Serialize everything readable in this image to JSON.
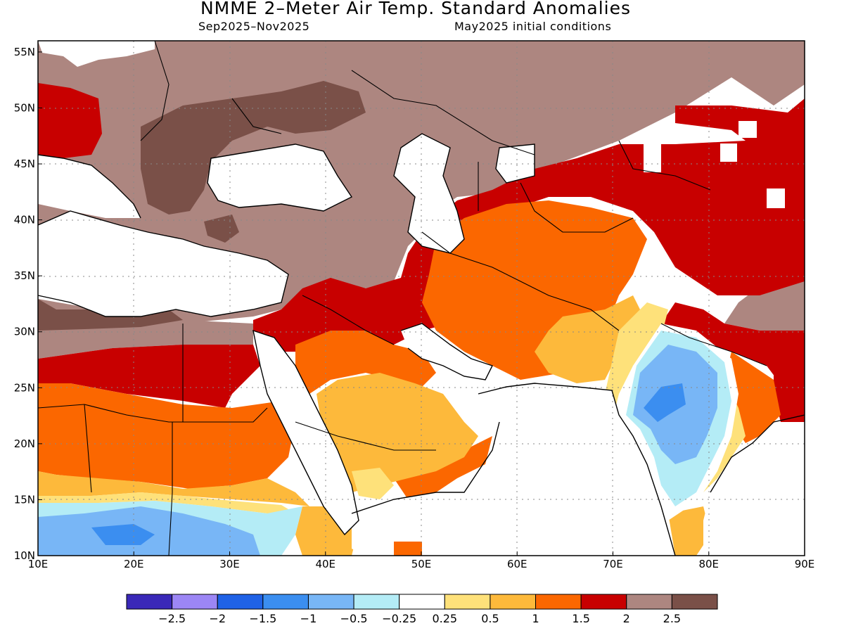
{
  "header": {
    "title": "NMME 2–Meter Air Temp. Standard Anomalies",
    "season": "Sep2025–Nov2025",
    "initial_conditions": "May2025 initial conditions"
  },
  "axes": {
    "lon_ticks": [
      "10E",
      "20E",
      "30E",
      "40E",
      "50E",
      "60E",
      "70E",
      "80E",
      "90E"
    ],
    "lat_ticks": [
      "55N",
      "50N",
      "45N",
      "40N",
      "35N",
      "30N",
      "25N",
      "20N",
      "15N",
      "10N"
    ],
    "lon_range": [
      10,
      90
    ],
    "lat_range": [
      10,
      56
    ]
  },
  "legend": {
    "colors": [
      "#3a28b8",
      "#9c86f5",
      "#1f62e6",
      "#3b8ef0",
      "#78b6f6",
      "#b4ecf6",
      "#ffffff",
      "#fee17a",
      "#fdb93b",
      "#fb6700",
      "#c80000",
      "#ad8680",
      "#7a5048"
    ],
    "labels": [
      "−2.5",
      "−2",
      "−1.5",
      "−1",
      "−0.5",
      "−0.25",
      "0.25",
      "0.5",
      "1",
      "1.5",
      "2",
      "2.5"
    ]
  }
}
